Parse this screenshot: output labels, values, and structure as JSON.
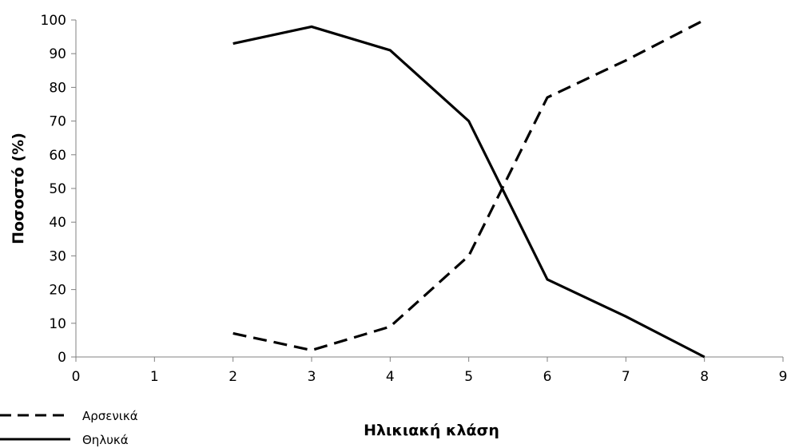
{
  "chart_data": {
    "type": "line",
    "xlabel": "Ηλικιακή κλάση",
    "ylabel": "Ποσοστό (%)",
    "xlim": [
      0,
      9
    ],
    "ylim": [
      0,
      100
    ],
    "x_ticks": [
      0,
      1,
      2,
      3,
      4,
      5,
      6,
      7,
      8,
      9
    ],
    "y_ticks": [
      0,
      10,
      20,
      30,
      40,
      50,
      60,
      70,
      80,
      90,
      100
    ],
    "grid": false,
    "legend_position": "bottom-left",
    "series": [
      {
        "name": "Αρσενικά",
        "style": "dashed",
        "color": "#000000",
        "x": [
          2,
          3,
          4,
          5,
          6,
          7,
          8
        ],
        "y": [
          7,
          2,
          9,
          30,
          77,
          88,
          100
        ]
      },
      {
        "name": "Θηλυκά",
        "style": "solid",
        "color": "#000000",
        "x": [
          2,
          3,
          4,
          5,
          6,
          7,
          8
        ],
        "y": [
          93,
          98,
          91,
          70,
          23,
          12,
          0
        ]
      }
    ]
  }
}
